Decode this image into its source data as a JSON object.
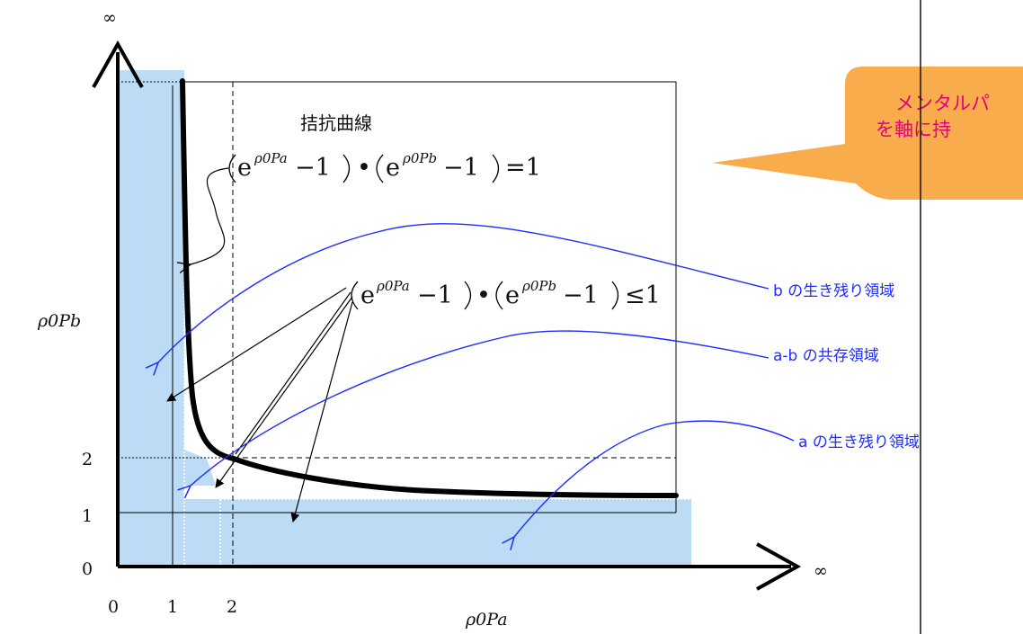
{
  "axes": {
    "x_infinity": "∞",
    "y_infinity": "∞",
    "x_label": "ρ0Pa",
    "y_label": "ρ0Pb",
    "x_ticks": [
      "0",
      "1",
      "2"
    ],
    "y_ticks": [
      "0",
      "1",
      "2"
    ]
  },
  "curve_title": "拮抗曲線",
  "formula_equal": {
    "base": "e",
    "exp_a": "ρ0Pa",
    "exp_b": "ρ0Pb",
    "minus_one": "−1",
    "dot": "•",
    "rhs": "=1"
  },
  "formula_le": {
    "base": "e",
    "exp_a": "ρ0Pa",
    "exp_b": "ρ0Pb",
    "minus_one": "−1",
    "dot": "•",
    "rhs": "≤1"
  },
  "regions": {
    "b_survive": "b の生き残り領域",
    "coexist": "a-b の共存領域",
    "a_survive": "a の生き残り領域"
  },
  "callout": {
    "line1": "メンタルパ",
    "line2": "を軸に持"
  },
  "colors": {
    "region_fill": "#bcdcf5",
    "blue": "#1f2cff",
    "callout_fill": "#f8ac4c",
    "callout_text": "#e4007f"
  }
}
